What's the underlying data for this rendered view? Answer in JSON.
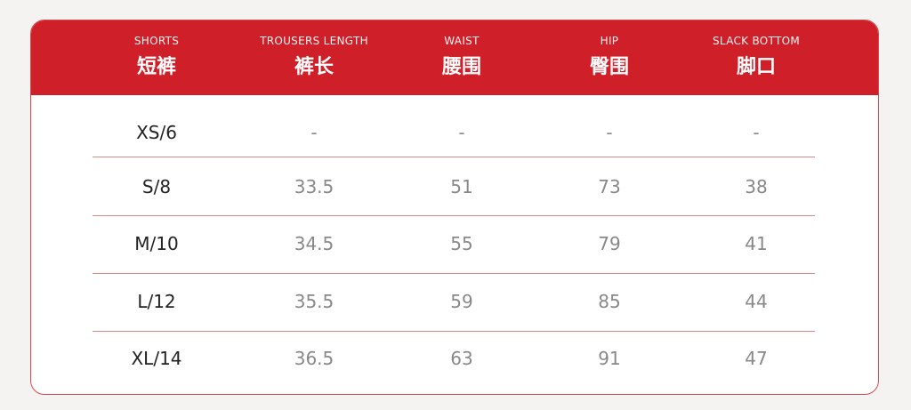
{
  "header": [
    {
      "en": "SHORTS",
      "zh": "短裤"
    },
    {
      "en": "TROUSERS LENGTH",
      "zh": "裤长"
    },
    {
      "en": "WAIST",
      "zh": "腰围"
    },
    {
      "en": "HIP",
      "zh": "臀围"
    },
    {
      "en": "SLACK BOTTOM",
      "zh": "脚口"
    }
  ],
  "rows": [
    [
      "XS/6",
      "-",
      "-",
      "-",
      "-"
    ],
    [
      "S/8",
      "33.5",
      "51",
      "73",
      "38"
    ],
    [
      "M/10",
      "34.5",
      "55",
      "79",
      "41"
    ],
    [
      "L/12",
      "35.5",
      "59",
      "85",
      "44"
    ],
    [
      "XL/14",
      "36.5",
      "63",
      "91",
      "47"
    ]
  ],
  "colors": {
    "header": "#cf1f29",
    "divider": "#d98a8d",
    "background": "#f4f3f1"
  }
}
